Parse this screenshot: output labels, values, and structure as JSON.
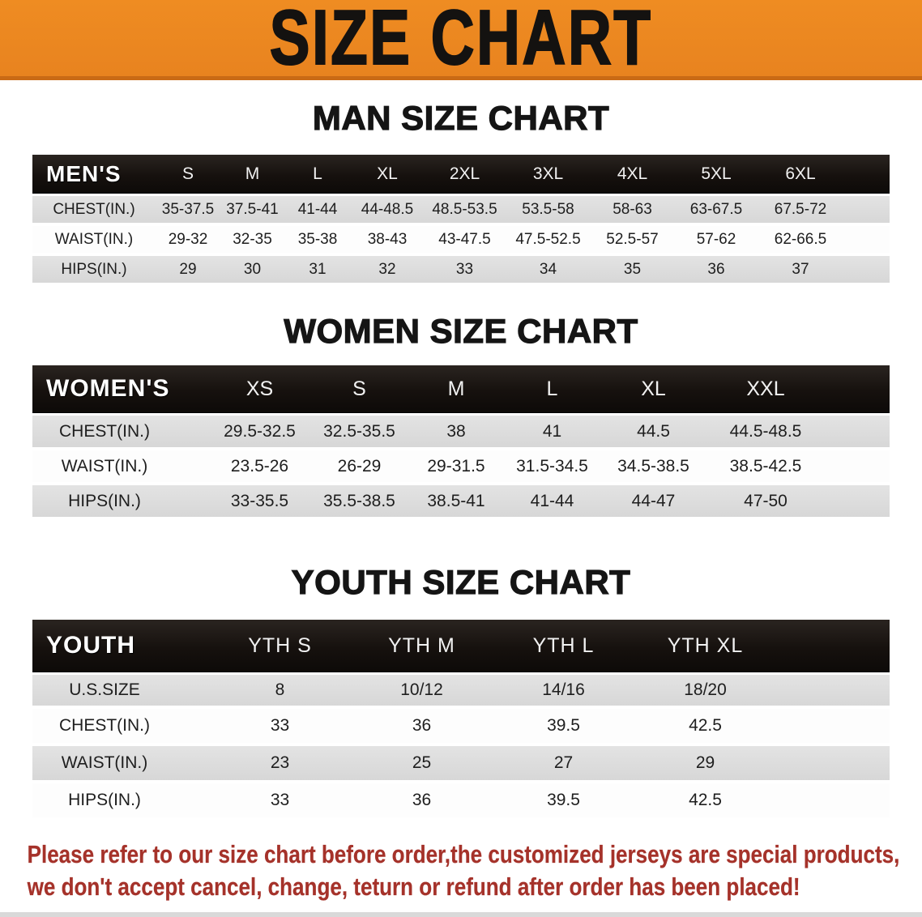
{
  "banner": {
    "title": "SIZE CHART",
    "bg_color": "#e8831f",
    "edge_color": "#c96a15"
  },
  "men": {
    "heading": "MAN SIZE CHART",
    "header_label": "MEN'S",
    "columns": [
      "S",
      "M",
      "L",
      "XL",
      "2XL",
      "3XL",
      "4XL",
      "5XL",
      "6XL"
    ],
    "rows": [
      {
        "label": "CHEST(IN.)",
        "values": [
          "35-37.5",
          "37.5-41",
          "41-44",
          "44-48.5",
          "48.5-53.5",
          "53.5-58",
          "58-63",
          "63-67.5",
          "67.5-72"
        ]
      },
      {
        "label": "WAIST(IN.)",
        "values": [
          "29-32",
          "32-35",
          "35-38",
          "38-43",
          "43-47.5",
          "47.5-52.5",
          "52.5-57",
          "57-62",
          "62-66.5"
        ]
      },
      {
        "label": "HIPS(IN.)",
        "values": [
          "29",
          "30",
          "31",
          "32",
          "33",
          "34",
          "35",
          "36",
          "37"
        ]
      }
    ]
  },
  "women": {
    "heading": "WOMEN SIZE CHART",
    "header_label": "WOMEN'S",
    "columns": [
      "XS",
      "S",
      "M",
      "L",
      "XL",
      "XXL"
    ],
    "rows": [
      {
        "label": "CHEST(IN.)",
        "values": [
          "29.5-32.5",
          "32.5-35.5",
          "38",
          "41",
          "44.5",
          "44.5-48.5"
        ]
      },
      {
        "label": "WAIST(IN.)",
        "values": [
          "23.5-26",
          "26-29",
          "29-31.5",
          "31.5-34.5",
          "34.5-38.5",
          "38.5-42.5"
        ]
      },
      {
        "label": "HIPS(IN.)",
        "values": [
          "33-35.5",
          "35.5-38.5",
          "38.5-41",
          "41-44",
          "44-47",
          "47-50"
        ]
      }
    ]
  },
  "youth": {
    "heading": "YOUTH SIZE CHART",
    "header_label": "YOUTH",
    "columns": [
      "YTH S",
      "YTH M",
      "YTH L",
      "YTH XL"
    ],
    "rows": [
      {
        "label": "U.S.SIZE",
        "values": [
          "8",
          "10/12",
          "14/16",
          "18/20"
        ]
      },
      {
        "label": "CHEST(IN.)",
        "values": [
          "33",
          "36",
          "39.5",
          "42.5"
        ]
      },
      {
        "label": "WAIST(IN.)",
        "values": [
          "23",
          "25",
          "27",
          "29"
        ]
      },
      {
        "label": "HIPS(IN.)",
        "values": [
          "33",
          "36",
          "39.5",
          "42.5"
        ]
      }
    ]
  },
  "disclaimer": {
    "line1": "Please refer to our size chart before order,the customized jerseys are special products,",
    "line2": "we don't accept cancel, change, teturn or refund after order has been placed!",
    "color": "#a5322a"
  }
}
